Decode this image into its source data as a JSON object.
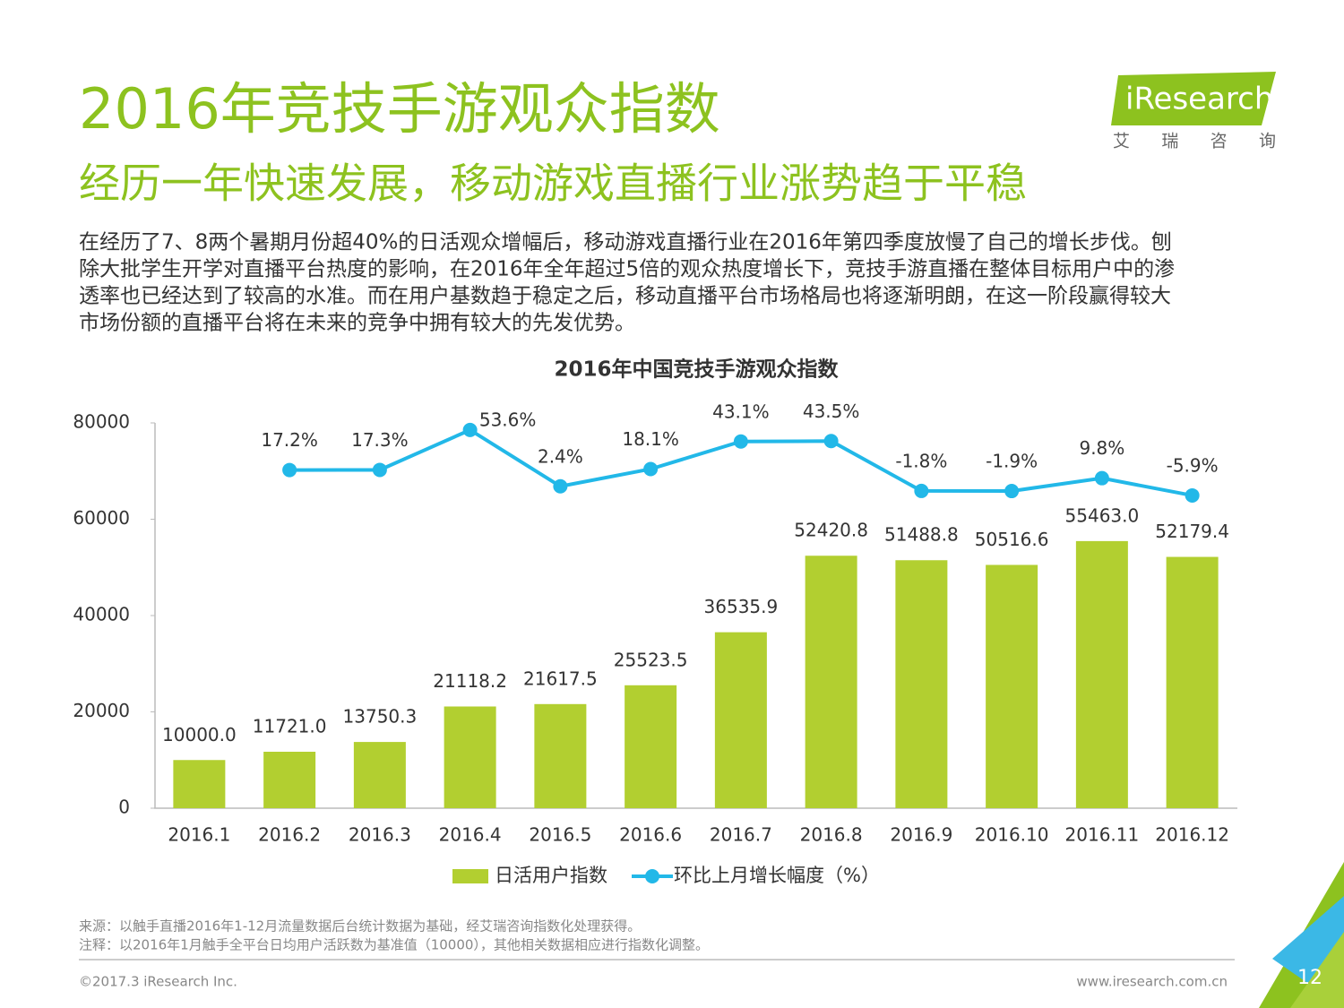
{
  "header": {
    "title": "2016年竞技手游观众指数",
    "subtitle": "经历一年快速发展，移动游戏直播行业涨势趋于平稳",
    "logo": "iResearch",
    "logo_sub": "艾 瑞 咨 询"
  },
  "body": [
    "在经历了7、8两个暑期月份超40%的日活观众增幅后，移动游戏直播行业在2016年第四季度放慢了自己的增长步伐。刨",
    "除大批学生开学对直播平台热度的影响，在2016年全年超过5倍的观众热度增长下，竞技手游直播在整体目标用户中的渗",
    "透率也已经达到了较高的水准。而在用户基数趋于稳定之后，移动直播平台市场格局也将逐渐明朗，在这一阶段赢得较大",
    "市场份额的直播平台将在未来的竞争中拥有较大的先发优势。"
  ],
  "chart_data": {
    "type": "bar",
    "title": "2016年中国竞技手游观众指数",
    "categories": [
      "2016.1",
      "2016.2",
      "2016.3",
      "2016.4",
      "2016.5",
      "2016.6",
      "2016.7",
      "2016.8",
      "2016.9",
      "2016.10",
      "2016.11",
      "2016.12"
    ],
    "series": [
      {
        "name": "日活用户指数",
        "type": "bar",
        "color": "#b2cf30",
        "values": [
          10000.0,
          11721.0,
          13750.3,
          21118.2,
          21617.5,
          25523.5,
          36535.9,
          52420.8,
          51488.8,
          50516.6,
          55463.0,
          52179.4
        ],
        "value_labels": [
          "10000.0",
          "11721.0",
          "13750.3",
          "21118.2",
          "21617.5",
          "25523.5",
          "36535.9",
          "52420.8",
          "51488.8",
          "50516.6",
          "55463.0",
          "52179.4"
        ]
      },
      {
        "name": "环比上月增长幅度（%）",
        "type": "line",
        "axis": "y2",
        "color": "#22b8e8",
        "values": [
          null,
          17.2,
          17.3,
          53.6,
          2.4,
          18.1,
          43.1,
          43.5,
          -1.8,
          -1.9,
          9.8,
          -5.9
        ],
        "value_labels": [
          null,
          "17.2%",
          "17.3%",
          "53.6%",
          "2.4%",
          "18.1%",
          "43.1%",
          "43.5%",
          "-1.8%",
          "-1.9%",
          "9.8%",
          "-5.9%"
        ]
      }
    ],
    "ylim": [
      0,
      80000
    ],
    "yticks": [
      0,
      20000,
      40000,
      60000,
      80000
    ],
    "y2lim": [
      -290,
      60
    ],
    "grid": false,
    "legend": "bottom"
  },
  "footer": {
    "source": "来源：以触手直播2016年1-12月流量数据后台统计数据为基础，经艾瑞咨询指数化处理获得。",
    "note": "注释：以2016年1月触手全平台日均用户活跃数为基准值（10000），其他相关数据相应进行指数化调整。",
    "copyright": "©2017.3 iResearch Inc.",
    "url": "www.iresearch.com.cn",
    "page": "12"
  }
}
